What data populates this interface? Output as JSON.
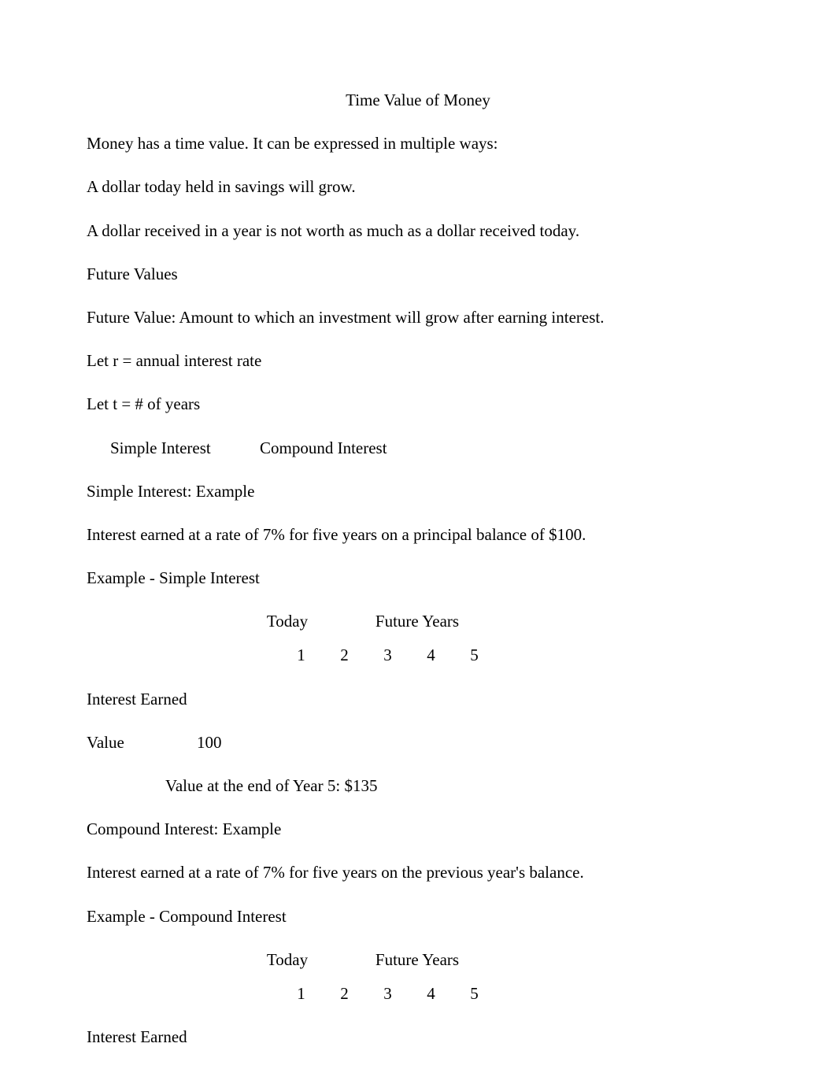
{
  "title": "Time Value of Money",
  "intro": {
    "p1": "Money has a time value.  It can be expressed in multiple ways:",
    "p2": "A dollar today held in savings will grow.",
    "p3": "A dollar received in a year is not worth as much as a dollar received today."
  },
  "future_values": {
    "heading": "Future Values",
    "definition": "Future Value: Amount to which an investment will grow after earning interest.",
    "let_r": "Let r = annual interest rate",
    "let_t": "Let t = # of years"
  },
  "interest_types": {
    "simple": "Simple Interest",
    "compound": "Compound Interest"
  },
  "simple_example": {
    "heading": "Simple Interest: Example",
    "description": "Interest earned at a rate of 7% for five years on a principal balance of $100.",
    "label": "Example - Simple Interest"
  },
  "table": {
    "today_label": "Today",
    "future_label": "Future Years",
    "years": [
      "1",
      "2",
      "3",
      "4",
      "5"
    ],
    "interest_earned_label": "Interest Earned",
    "value_label": "Value",
    "value_initial": "100",
    "end_value": "Value at the end of Year 5: $135"
  },
  "compound_example": {
    "heading": "Compound Interest: Example",
    "description": "Interest earned at a rate of 7% for five years on the previous year's balance.",
    "label": "Example - Compound Interest"
  },
  "colors": {
    "background": "#ffffff",
    "text": "#000000"
  },
  "typography": {
    "font_family": "Times New Roman",
    "font_size_pt": 16
  }
}
